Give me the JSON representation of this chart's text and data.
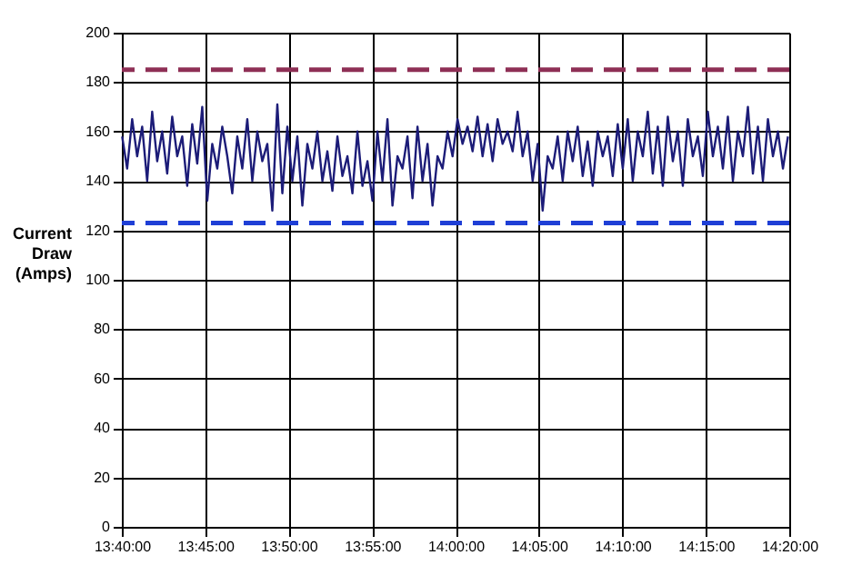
{
  "chart_data": {
    "type": "line",
    "ylabel": "Current Draw (Amps)",
    "x": [
      13.667,
      13.672,
      13.677,
      13.682,
      13.687,
      13.692,
      13.697,
      13.702,
      13.707,
      13.712,
      13.717,
      13.722,
      13.727,
      13.732,
      13.737,
      13.742,
      13.747,
      13.752,
      13.757,
      13.762,
      13.767,
      13.772,
      13.777,
      13.782,
      13.787,
      13.792,
      13.797,
      13.802,
      13.807,
      13.812,
      13.817,
      13.822,
      13.827,
      13.832,
      13.837,
      13.842,
      13.847,
      13.852,
      13.857,
      13.862,
      13.867,
      13.872,
      13.877,
      13.882,
      13.887,
      13.892,
      13.897,
      13.902,
      13.907,
      13.912,
      13.917,
      13.922,
      13.927,
      13.932,
      13.937,
      13.942,
      13.947,
      13.952,
      13.957,
      13.962,
      13.967,
      13.972,
      13.977,
      13.982,
      13.987,
      13.992,
      13.997,
      14.002,
      14.007,
      14.012,
      14.017,
      14.022,
      14.027,
      14.032,
      14.037,
      14.042,
      14.047,
      14.052,
      14.057,
      14.062,
      14.067,
      14.072,
      14.077,
      14.082,
      14.087,
      14.092,
      14.097,
      14.102,
      14.107,
      14.112,
      14.117,
      14.122,
      14.127,
      14.132,
      14.137,
      14.142,
      14.147,
      14.152,
      14.157,
      14.162,
      14.167,
      14.172,
      14.177,
      14.182,
      14.187,
      14.192,
      14.197,
      14.202,
      14.207,
      14.212,
      14.217,
      14.222,
      14.227,
      14.232,
      14.237,
      14.242,
      14.247,
      14.252,
      14.257,
      14.262,
      14.267,
      14.272,
      14.277,
      14.282,
      14.287,
      14.292,
      14.297,
      14.302,
      14.307,
      14.312,
      14.317,
      14.322,
      14.327,
      14.332
    ],
    "series": [
      {
        "color": "#1c1c78",
        "values": [
          158,
          145,
          165,
          150,
          162,
          140,
          168,
          148,
          160,
          143,
          166,
          150,
          158,
          138,
          163,
          147,
          170,
          132,
          155,
          145,
          162,
          150,
          135,
          158,
          145,
          165,
          140,
          160,
          148,
          155,
          128,
          171,
          135,
          162,
          140,
          158,
          130,
          155,
          145,
          160,
          140,
          152,
          136,
          158,
          142,
          150,
          135,
          160,
          138,
          148,
          132,
          160,
          140,
          165,
          130,
          150,
          145,
          158,
          133,
          162,
          140,
          155,
          130,
          150,
          145,
          160,
          150,
          165,
          155,
          162,
          152,
          166,
          150,
          163,
          148,
          165,
          155,
          160,
          152,
          168,
          150,
          160,
          140,
          155,
          128,
          150,
          145,
          158,
          140,
          160,
          148,
          162,
          142,
          156,
          138,
          160,
          150,
          158,
          142,
          163,
          145,
          165,
          140,
          160,
          150,
          168,
          143,
          162,
          138,
          166,
          148,
          160,
          138,
          165,
          150,
          158,
          142,
          168,
          150,
          162,
          145,
          166,
          140,
          160,
          150,
          170,
          143,
          162,
          140,
          165,
          150,
          160,
          145,
          158
        ]
      }
    ],
    "xlim": [
      13.6667,
      14.3333
    ],
    "xticks": [
      {
        "value": 13.6667,
        "label": "13:40:00"
      },
      {
        "value": 13.75,
        "label": "13:45:00"
      },
      {
        "value": 13.8333,
        "label": "13:50:00"
      },
      {
        "value": 13.9167,
        "label": "13:55:00"
      },
      {
        "value": 14.0,
        "label": "14:00:00"
      },
      {
        "value": 14.0833,
        "label": "14:05:00"
      },
      {
        "value": 14.1667,
        "label": "14:10:00"
      },
      {
        "value": 14.25,
        "label": "14:15:00"
      },
      {
        "value": 14.3333,
        "label": "14:20:00"
      }
    ],
    "ylim": [
      0,
      200
    ],
    "yticks": [
      0,
      20,
      40,
      60,
      80,
      100,
      120,
      140,
      160,
      180,
      200
    ],
    "ref_lines": [
      {
        "axis": "y",
        "value": 185,
        "color": "#8e2f55",
        "line_style": "dashed"
      },
      {
        "axis": "y",
        "value": 123,
        "color": "#1f3fd6",
        "line_style": "dashed"
      }
    ],
    "grid": true,
    "marker": "none",
    "line_style": "solid"
  }
}
